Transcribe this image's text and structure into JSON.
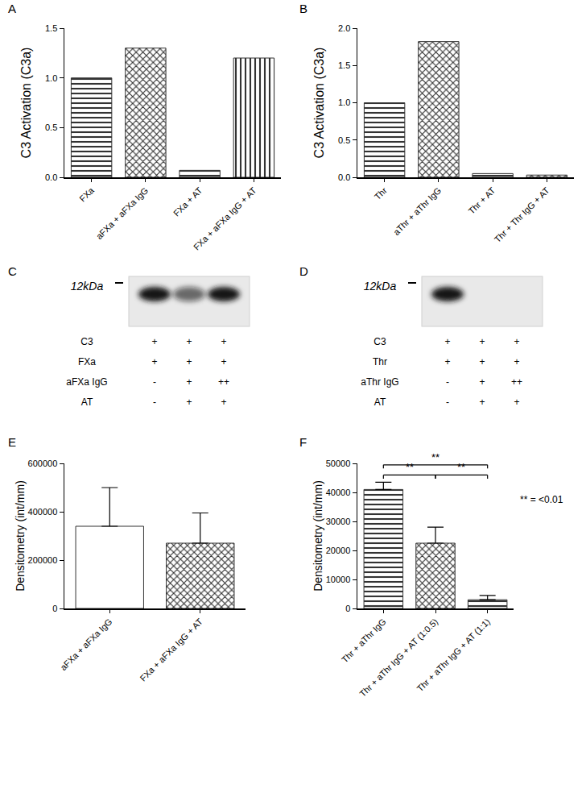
{
  "chart_data": [
    {
      "panel": "A",
      "type": "bar",
      "y_label": "C3 Activation (C3a)",
      "categories": [
        "FXa",
        "aFXa + aFXa IgG",
        "FXa + AT",
        "FXa + aFXa IgG + AT"
      ],
      "values": [
        1.0,
        1.3,
        0.07,
        1.2
      ],
      "color": "#333333",
      "ylim": [
        0,
        1.5
      ],
      "yticks": [
        {
          "value": 0,
          "label": "0.0"
        },
        0.5,
        {
          "value": 1,
          "label": "1.0"
        },
        1.5
      ],
      "grid": false
    },
    {
      "panel": "B",
      "type": "bar",
      "y_label": "C3 Activation (C3a)",
      "categories": [
        "Thr",
        "aThr + aThr IgG",
        "Thr + AT",
        "Thr + Thr IgG + AT"
      ],
      "values": [
        1.0,
        1.82,
        0.05,
        0.03
      ],
      "color": "#333333",
      "ylim": [
        0,
        2
      ],
      "yticks": [
        {
          "value": 0,
          "label": "0.0"
        },
        0.5,
        {
          "value": 1,
          "label": "1.0"
        },
        1.5,
        {
          "value": 2,
          "label": "2.0"
        }
      ],
      "grid": false
    },
    {
      "panel": "E",
      "type": "bar",
      "y_label": "Densitometry (int/mm)",
      "categories": [
        "aFXa + aFXa IgG",
        "FXa + aFXa IgG + AT"
      ],
      "values": [
        340000,
        270000
      ],
      "errors": [
        160000,
        125000
      ],
      "color": "#333333",
      "ylim": [
        0,
        600000
      ],
      "yticks": [
        0,
        200000,
        400000,
        600000
      ],
      "grid": false
    },
    {
      "panel": "F",
      "type": "bar",
      "y_label": "Densitometry (int/mm)",
      "categories": [
        "Thr + aThr IgG",
        "Thr + aThr IgG + AT (1:0.5)",
        "Thr + aThr IgG + AT (1:1)"
      ],
      "values": [
        41000,
        22500,
        3000
      ],
      "errors": [
        2500,
        5500,
        1500
      ],
      "color": "#333333",
      "ylim": [
        0,
        50000
      ],
      "yticks": [
        0,
        10000,
        20000,
        30000,
        40000,
        50000
      ],
      "significance": [
        {
          "from": 0,
          "to": 2,
          "label": "**"
        },
        {
          "from": 0,
          "to": 1,
          "label": "**"
        },
        {
          "from": 1,
          "to": 2,
          "label": "**"
        }
      ],
      "annotations": [
        "** = <0.01"
      ],
      "grid": false
    }
  ],
  "blots": [
    {
      "panel": "C",
      "marker_label": "12kDa",
      "bands": [
        1,
        0.6,
        1
      ],
      "rows": [
        {
          "label": "C3",
          "lanes": [
            "+",
            "+",
            "+"
          ]
        },
        {
          "label": "FXa",
          "lanes": [
            "+",
            "+",
            "+"
          ]
        },
        {
          "label": "aFXa IgG",
          "lanes": [
            "-",
            "+",
            "++"
          ]
        },
        {
          "label": "AT",
          "lanes": [
            "-",
            "+",
            "+"
          ]
        }
      ]
    },
    {
      "panel": "D",
      "marker_label": "12kDa",
      "bands": [
        1,
        0,
        0
      ],
      "rows": [
        {
          "label": "C3",
          "lanes": [
            "+",
            "+",
            "+"
          ]
        },
        {
          "label": "Thr",
          "lanes": [
            "+",
            "+",
            "+"
          ]
        },
        {
          "label": "aThr IgG",
          "lanes": [
            "-",
            "+",
            "++"
          ]
        },
        {
          "label": "AT",
          "lanes": [
            "-",
            "+",
            "+"
          ]
        }
      ]
    }
  ]
}
